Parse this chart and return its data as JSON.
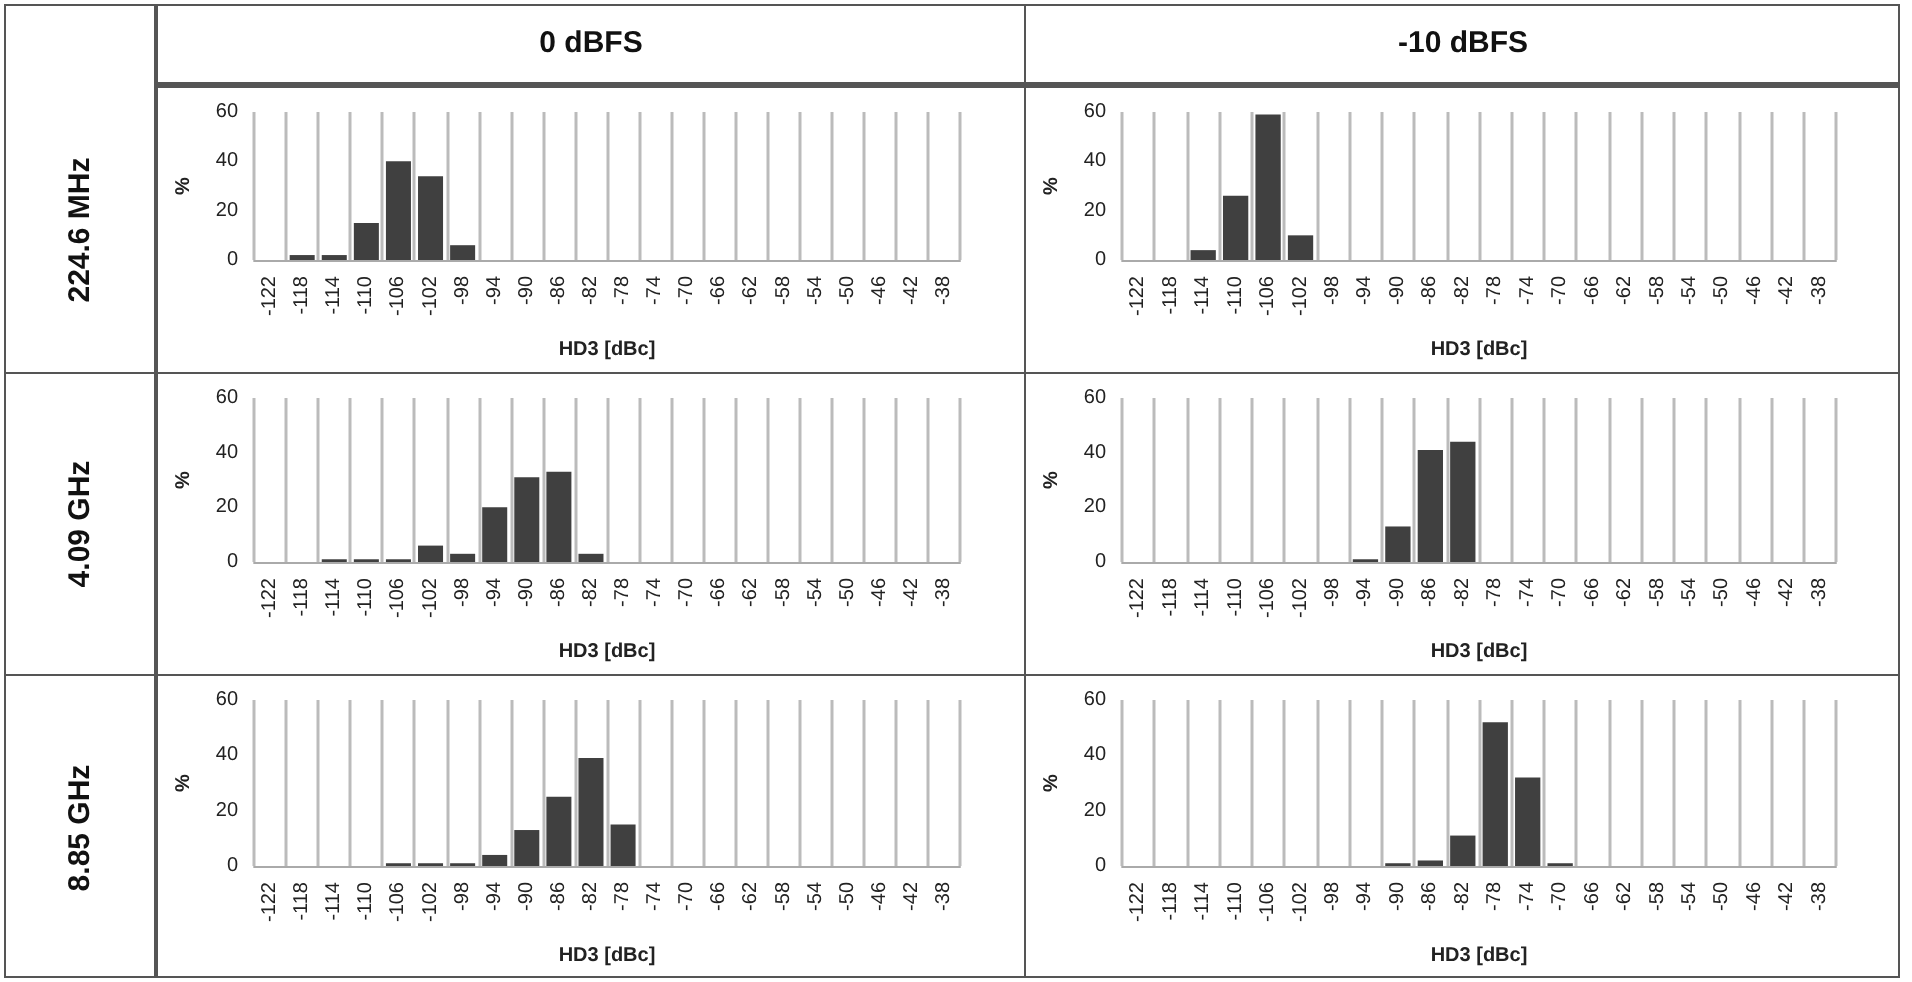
{
  "chart_data": [
    {
      "type": "bar",
      "title": "0 dBFS",
      "subtitle": "224.6 MHz",
      "xlabel": "HD3 [dBc]",
      "ylabel": "%",
      "categories": [
        "-122",
        "-118",
        "-114",
        "-110",
        "-106",
        "-102",
        "-98",
        "-94",
        "-90",
        "-86",
        "-82",
        "-78",
        "-74",
        "-70",
        "-66",
        "-62",
        "-58",
        "-54",
        "-50",
        "-46",
        "-42",
        "-38"
      ],
      "values": [
        0,
        2,
        2,
        15,
        40,
        34,
        6,
        0,
        0,
        0,
        0,
        0,
        0,
        0,
        0,
        0,
        0,
        0,
        0,
        0,
        0,
        0
      ],
      "color": "#404040",
      "ylim": [
        0,
        60
      ],
      "yticks": [
        0,
        20,
        40,
        60
      ],
      "grid": "x"
    },
    {
      "type": "bar",
      "title": "-10 dBFS",
      "xlabel": "HD3 [dBc]",
      "ylabel": "%",
      "categories": [
        "-122",
        "-118",
        "-114",
        "-110",
        "-106",
        "-102",
        "-98",
        "-94",
        "-90",
        "-86",
        "-82",
        "-78",
        "-74",
        "-70",
        "-66",
        "-62",
        "-58",
        "-54",
        "-50",
        "-46",
        "-42",
        "-38"
      ],
      "values": [
        0,
        0,
        4,
        26,
        59,
        10,
        0,
        0,
        0,
        0,
        0,
        0,
        0,
        0,
        0,
        0,
        0,
        0,
        0,
        0,
        0,
        0
      ],
      "color": "#404040",
      "ylim": [
        0,
        60
      ],
      "yticks": [
        0,
        20,
        40,
        60
      ],
      "grid": "x"
    },
    {
      "type": "bar",
      "subtitle": "4.09 GHz",
      "xlabel": "HD3 [dBc]",
      "ylabel": "%",
      "categories": [
        "-122",
        "-118",
        "-114",
        "-110",
        "-106",
        "-102",
        "-98",
        "-94",
        "-90",
        "-86",
        "-82",
        "-78",
        "-74",
        "-70",
        "-66",
        "-62",
        "-58",
        "-54",
        "-50",
        "-46",
        "-42",
        "-38"
      ],
      "values": [
        0,
        0,
        1,
        1,
        1,
        6,
        3,
        20,
        31,
        33,
        3,
        0,
        0,
        0,
        0,
        0,
        0,
        0,
        0,
        0,
        0,
        0
      ],
      "color": "#404040",
      "ylim": [
        0,
        60
      ],
      "yticks": [
        0,
        20,
        40,
        60
      ],
      "grid": "x"
    },
    {
      "type": "bar",
      "xlabel": "HD3 [dBc]",
      "ylabel": "%",
      "categories": [
        "-122",
        "-118",
        "-114",
        "-110",
        "-106",
        "-102",
        "-98",
        "-94",
        "-90",
        "-86",
        "-82",
        "-78",
        "-74",
        "-70",
        "-66",
        "-62",
        "-58",
        "-54",
        "-50",
        "-46",
        "-42",
        "-38"
      ],
      "values": [
        0,
        0,
        0,
        0,
        0,
        0,
        0,
        1,
        13,
        41,
        44,
        0,
        0,
        0,
        0,
        0,
        0,
        0,
        0,
        0,
        0,
        0
      ],
      "color": "#404040",
      "ylim": [
        0,
        60
      ],
      "yticks": [
        0,
        20,
        40,
        60
      ],
      "grid": "x"
    },
    {
      "type": "bar",
      "subtitle": "8.85 GHz",
      "xlabel": "HD3 [dBc]",
      "ylabel": "%",
      "categories": [
        "-122",
        "-118",
        "-114",
        "-110",
        "-106",
        "-102",
        "-98",
        "-94",
        "-90",
        "-86",
        "-82",
        "-78",
        "-74",
        "-70",
        "-66",
        "-62",
        "-58",
        "-54",
        "-50",
        "-46",
        "-42",
        "-38"
      ],
      "values": [
        0,
        0,
        0,
        0,
        1,
        1,
        1,
        4,
        13,
        25,
        39,
        15,
        0,
        0,
        0,
        0,
        0,
        0,
        0,
        0,
        0,
        0
      ],
      "color": "#404040",
      "ylim": [
        0,
        60
      ],
      "yticks": [
        0,
        20,
        40,
        60
      ],
      "grid": "x"
    },
    {
      "type": "bar",
      "xlabel": "HD3 [dBc]",
      "ylabel": "%",
      "categories": [
        "-122",
        "-118",
        "-114",
        "-110",
        "-106",
        "-102",
        "-98",
        "-94",
        "-90",
        "-86",
        "-82",
        "-78",
        "-74",
        "-70",
        "-66",
        "-62",
        "-58",
        "-54",
        "-50",
        "-46",
        "-42",
        "-38"
      ],
      "values": [
        0,
        0,
        0,
        0,
        0,
        0,
        0,
        0,
        1,
        2,
        11,
        52,
        32,
        1,
        0,
        0,
        0,
        0,
        0,
        0,
        0,
        0
      ],
      "color": "#404040",
      "ylim": [
        0,
        60
      ],
      "yticks": [
        0,
        20,
        40,
        60
      ],
      "grid": "x"
    }
  ]
}
